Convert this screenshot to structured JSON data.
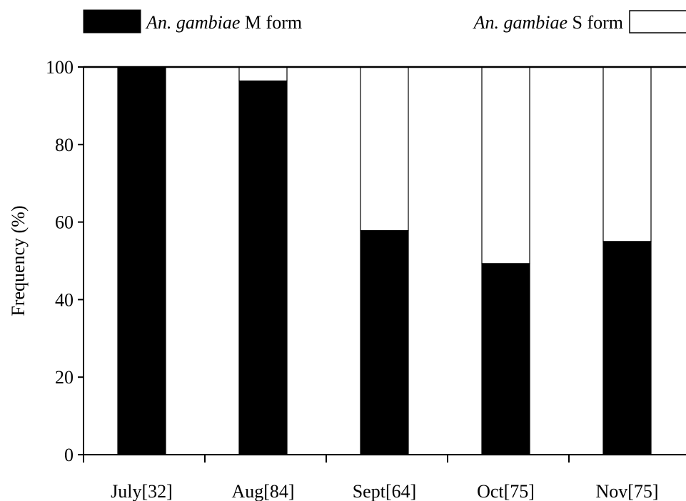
{
  "chart_data": {
    "type": "bar",
    "stacked": true,
    "categories": [
      "July[32]",
      "Aug[84]",
      "Sept[64]",
      "Oct[75]",
      "Nov[75]"
    ],
    "series": [
      {
        "name_italic": "An. gambiae",
        "name_rest": " M form",
        "color": "#000000",
        "values": [
          100,
          96.4,
          57.8,
          49.3,
          55.0
        ]
      },
      {
        "name_italic": "An. gambiae",
        "name_rest": " S form",
        "color": "#ffffff",
        "values": [
          0,
          3.6,
          42.2,
          50.7,
          45.0
        ]
      }
    ],
    "ylabel": "Frequency (%)",
    "ylim": [
      0,
      100
    ],
    "yticks": [
      0,
      20,
      40,
      60,
      80,
      100
    ],
    "legend": "top"
  }
}
